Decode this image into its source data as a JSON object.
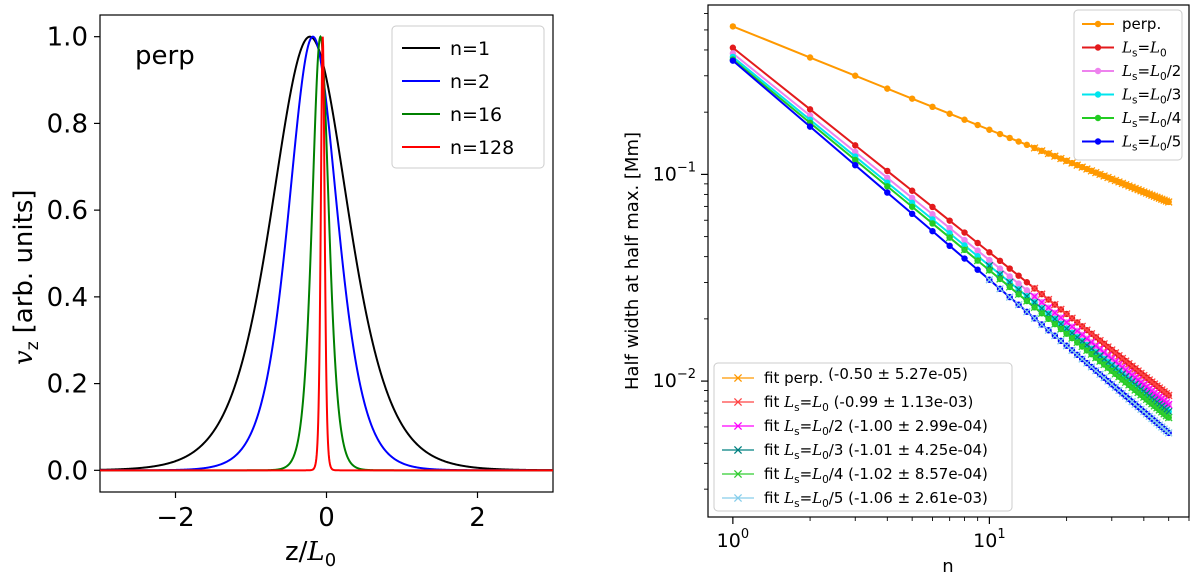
{
  "colors": {
    "n1": "#000000",
    "n2": "#0000ff",
    "n16": "#008000",
    "n128": "#ff0000",
    "perp": "#ff9900",
    "L0": "#e31a1c",
    "L2": "#ee82ee",
    "L3": "#00e5ee",
    "L4": "#22cc22",
    "L5": "#0000ff",
    "fit_perp": "#ff9900",
    "fit_L0": "#ff4444",
    "fit_L2": "#ff00ff",
    "fit_L3": "#008080",
    "fit_L4": "#32cd32",
    "fit_L5": "#87ceeb"
  },
  "chart_data": [
    {
      "type": "line",
      "annotation": "perp",
      "xlabel": "z/L0",
      "xlabel_main": "z/",
      "xlabel_L": "L",
      "xlabel_sub": "0",
      "ylabel": "vz [arb. units]",
      "ylabel_v": "v",
      "ylabel_sub": "z",
      "ylabel_rest": "[arb. units]",
      "xlim": [
        -3,
        3
      ],
      "ylim": [
        -0.05,
        1.05
      ],
      "xticks": [
        -2,
        0,
        2
      ],
      "xtick_labels": [
        "−2",
        "0",
        "2"
      ],
      "yticks": [
        0.0,
        0.2,
        0.4,
        0.6,
        0.8,
        1.0
      ],
      "ytick_labels": [
        "0.0",
        "0.2",
        "0.4",
        "0.6",
        "0.8",
        "1.0"
      ],
      "legend_position": "top-right",
      "series": [
        {
          "name": "n=1",
          "profile": "sech2",
          "center": -0.22,
          "half_width": 0.6,
          "peak": 1.0
        },
        {
          "name": "n=2",
          "profile": "sech2",
          "center": -0.18,
          "half_width": 0.38,
          "peak": 1.0
        },
        {
          "name": "n=16",
          "profile": "sech2",
          "center": -0.08,
          "half_width": 0.13,
          "peak": 1.0
        },
        {
          "name": "n=128",
          "profile": "sech2",
          "center": -0.05,
          "half_width": 0.03,
          "peak": 1.0
        }
      ]
    },
    {
      "type": "line",
      "scale": "log-log",
      "xlabel": "n",
      "ylabel": "Half width at half max. [Mm]",
      "xlim": [
        0.8,
        60
      ],
      "ylim": [
        0.0022,
        0.66
      ],
      "xticks": [
        1,
        10
      ],
      "xtick_labels": [
        {
          "base": "10",
          "exp": "0"
        },
        {
          "base": "10",
          "exp": "1"
        }
      ],
      "yticks": [
        0.01,
        0.1
      ],
      "ytick_labels": [
        {
          "base": "10",
          "exp": "−2"
        },
        {
          "base": "10",
          "exp": "−1"
        }
      ],
      "n_values": [
        1,
        2,
        3,
        4,
        5,
        6,
        7,
        8,
        9,
        10,
        11,
        12,
        13,
        14,
        15,
        16,
        17,
        18,
        19,
        20,
        21,
        22,
        23,
        24,
        25,
        26,
        27,
        28,
        29,
        30,
        31,
        32,
        33,
        34,
        35,
        36,
        37,
        38,
        39,
        40,
        41,
        42,
        43,
        44,
        45,
        46,
        47,
        48,
        49,
        50
      ],
      "series": [
        {
          "key": "perp",
          "name": "perp.",
          "pre": "perp.",
          "y_at_n1": 0.52,
          "slope": -0.5
        },
        {
          "key": "L0",
          "name": "Ls=L0",
          "pre": "",
          "L": "L",
          "sub": "s",
          "eq": "=",
          "L2": "L",
          "sub2": "0",
          "post": "",
          "y_at_n1": 0.41,
          "slope": -0.99
        },
        {
          "key": "L2",
          "name": "Ls=L0/2",
          "pre": "",
          "L": "L",
          "sub": "s",
          "eq": "=",
          "L2": "L",
          "sub2": "0",
          "post": "/2",
          "y_at_n1": 0.385,
          "slope": -1.0
        },
        {
          "key": "L3",
          "name": "Ls=L0/3",
          "pre": "",
          "L": "L",
          "sub": "s",
          "eq": "=",
          "L2": "L",
          "sub2": "0",
          "post": "/3",
          "y_at_n1": 0.37,
          "slope": -1.01
        },
        {
          "key": "L4",
          "name": "Ls=L0/4",
          "pre": "",
          "L": "L",
          "sub": "s",
          "eq": "=",
          "L2": "L",
          "sub2": "0",
          "post": "/4",
          "y_at_n1": 0.36,
          "slope": -1.02
        },
        {
          "key": "L5",
          "name": "Ls=L0/5",
          "pre": "",
          "L": "L",
          "sub": "s",
          "eq": "=",
          "L2": "L",
          "sub2": "0",
          "post": "/5",
          "y_at_n1": 0.355,
          "slope": -1.06
        }
      ],
      "fits": [
        {
          "key": "fit_perp",
          "of": "perp",
          "pre": "fit perp.",
          "post": " (-0.50 ± 5.27e-05)",
          "n_start": 15,
          "y_at_n1": 0.52,
          "slope": -0.5
        },
        {
          "key": "fit_L0",
          "of": "L0",
          "pre": "fit ",
          "L": "L",
          "sub": "s",
          "eq": "=",
          "L2": "L",
          "sub2": "0",
          "post": " (-0.99 ± 1.13e-03)",
          "n_start": 15,
          "y_at_n1": 0.41,
          "slope": -0.99
        },
        {
          "key": "fit_L2",
          "of": "L2",
          "pre": "fit ",
          "L": "L",
          "sub": "s",
          "eq": "=",
          "L2": "L",
          "sub2": "0",
          "post": "/2 (-1.00 ± 2.99e-04)",
          "n_start": 15,
          "y_at_n1": 0.385,
          "slope": -1.0
        },
        {
          "key": "fit_L3",
          "of": "L3",
          "pre": "fit ",
          "L": "L",
          "sub": "s",
          "eq": "=",
          "L2": "L",
          "sub2": "0",
          "post": "/3 (-1.01 ± 4.25e-04)",
          "n_start": 10,
          "y_at_n1": 0.37,
          "slope": -1.01
        },
        {
          "key": "fit_L4",
          "of": "L4",
          "pre": "fit ",
          "L": "L",
          "sub": "s",
          "eq": "=",
          "L2": "L",
          "sub2": "0",
          "post": "/4 (-1.02 ± 8.57e-04)",
          "n_start": 7,
          "y_at_n1": 0.36,
          "slope": -1.02
        },
        {
          "key": "fit_L5",
          "of": "L5",
          "pre": "fit ",
          "L": "L",
          "sub": "s",
          "eq": "=",
          "L2": "L",
          "sub2": "0",
          "post": "/5 (-1.06 ± 2.61e-03)",
          "n_start": 10,
          "y_at_n1": 0.355,
          "slope": -1.06
        }
      ]
    }
  ]
}
